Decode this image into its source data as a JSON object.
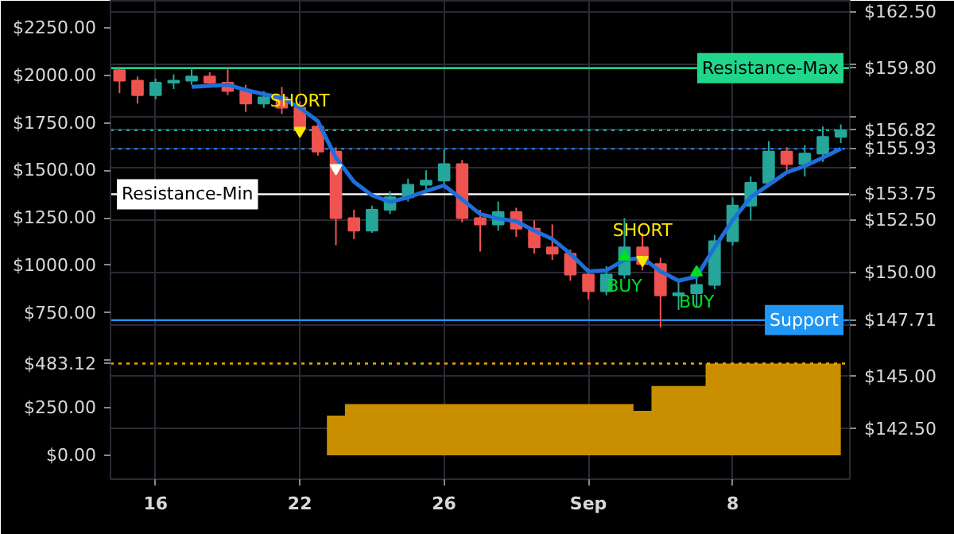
{
  "chart_data": {
    "type": "candlestick",
    "categories": [
      null,
      null,
      "16",
      null,
      null,
      null,
      null,
      null,
      null,
      null,
      "22",
      null,
      null,
      null,
      null,
      null,
      null,
      null,
      "26",
      null,
      null,
      null,
      null,
      null,
      null,
      null,
      "Sep",
      null,
      null,
      null,
      null,
      null,
      null,
      null,
      "8",
      null,
      null,
      null,
      null,
      null,
      null
    ],
    "ohlc": [
      [
        159.7,
        159.8,
        158.6,
        159.2
      ],
      [
        159.2,
        159.4,
        158.1,
        158.5
      ],
      [
        158.5,
        159.3,
        158.3,
        159.1
      ],
      [
        159.1,
        159.5,
        158.8,
        159.2
      ],
      [
        159.2,
        159.8,
        159.0,
        159.4
      ],
      [
        159.4,
        159.6,
        158.9,
        159.1
      ],
      [
        159.1,
        159.8,
        158.5,
        158.7
      ],
      [
        158.7,
        159.0,
        157.7,
        158.1
      ],
      [
        158.1,
        158.7,
        157.9,
        158.4
      ],
      [
        158.4,
        158.9,
        157.6,
        157.9
      ],
      [
        157.9,
        158.2,
        156.8,
        157.0
      ],
      [
        157.0,
        157.2,
        155.6,
        155.8
      ],
      [
        155.8,
        156.0,
        151.3,
        152.6
      ],
      [
        152.6,
        153.0,
        151.6,
        152.0
      ],
      [
        152.0,
        153.2,
        151.9,
        153.0
      ],
      [
        153.0,
        153.9,
        152.8,
        153.6
      ],
      [
        153.6,
        154.5,
        153.4,
        154.2
      ],
      [
        154.2,
        154.9,
        153.9,
        154.4
      ],
      [
        154.4,
        155.9,
        154.2,
        155.2
      ],
      [
        155.2,
        155.4,
        152.4,
        152.6
      ],
      [
        152.6,
        153.0,
        151.0,
        152.3
      ],
      [
        152.3,
        153.4,
        152.0,
        152.9
      ],
      [
        152.9,
        153.1,
        151.7,
        152.1
      ],
      [
        152.1,
        152.5,
        150.9,
        151.2
      ],
      [
        151.2,
        152.3,
        150.6,
        150.9
      ],
      [
        150.9,
        151.1,
        149.6,
        149.9
      ],
      [
        149.9,
        150.2,
        148.7,
        149.1
      ],
      [
        149.1,
        150.3,
        148.9,
        149.9
      ],
      [
        149.9,
        152.6,
        149.7,
        151.2
      ],
      [
        151.2,
        151.9,
        150.1,
        150.4
      ],
      [
        150.4,
        150.7,
        147.35,
        148.9
      ],
      [
        148.9,
        149.6,
        148.2,
        149.0
      ],
      [
        149.0,
        149.9,
        148.3,
        149.4
      ],
      [
        149.4,
        151.8,
        149.2,
        151.5
      ],
      [
        151.5,
        153.6,
        151.3,
        153.2
      ],
      [
        153.2,
        154.6,
        152.5,
        154.3
      ],
      [
        154.3,
        156.3,
        154.1,
        155.8
      ],
      [
        155.8,
        156.0,
        154.8,
        155.2
      ],
      [
        155.2,
        156.1,
        154.6,
        155.7
      ],
      [
        155.7,
        157.0,
        155.3,
        156.5
      ],
      [
        156.5,
        157.1,
        156.2,
        156.82
      ]
    ],
    "colors": [
      "#ef5350",
      "#ef5350",
      "#26a69a",
      "#26a69a",
      "#26a69a",
      "#ef5350",
      "#ef5350",
      "#ef5350",
      "#26a69a",
      "#ef5350",
      "#ef5350",
      "#ef5350",
      "#ef5350",
      "#ef5350",
      "#26a69a",
      "#26a69a",
      "#26a69a",
      "#26a69a",
      "#26a69a",
      "#ef5350",
      "#ef5350",
      "#26a69a",
      "#ef5350",
      "#ef5350",
      "#ef5350",
      "#ef5350",
      "#ef5350",
      "#26a69a",
      "#26a69a",
      "#ef5350",
      "#ef5350",
      "#26a69a",
      "#26a69a",
      "#26a69a",
      "#26a69a",
      "#26a69a",
      "#26a69a",
      "#ef5350",
      "#26a69a",
      "#26a69a",
      "#26a69a"
    ],
    "series": [
      {
        "type": "area",
        "axis": "y2",
        "color": "#c98f00",
        "values": [
          0,
          0,
          0,
          0,
          0,
          0,
          0,
          0,
          0,
          0,
          0,
          0,
          210,
          270,
          270,
          270,
          270,
          270,
          270,
          270,
          270,
          270,
          270,
          270,
          270,
          270,
          270,
          270,
          270,
          235,
          365,
          365,
          365,
          483.12,
          483.12,
          483.12,
          483.12,
          483.12,
          483.12,
          483.12,
          483.12
        ]
      },
      {
        "type": "line",
        "color": "#1e6fdb",
        "values": [
          null,
          null,
          null,
          null,
          158.9,
          158.95,
          159.0,
          158.75,
          158.55,
          158.38,
          157.9,
          157.25,
          155.5,
          154.35,
          153.7,
          153.38,
          153.6,
          153.9,
          154.17,
          153.5,
          152.8,
          152.58,
          152.45,
          152.0,
          151.6,
          150.9,
          150.05,
          150.1,
          150.6,
          150.7,
          150.05,
          149.6,
          149.8,
          151.2,
          152.5,
          153.6,
          154.2,
          154.8,
          155.1,
          155.5,
          155.93
        ]
      },
      {
        "type": "scatter",
        "name": "SHORT",
        "marker": "triangle",
        "color": "#ffe600",
        "values": [
          null,
          null,
          null,
          null,
          null,
          null,
          null,
          null,
          null,
          null,
          156.8,
          null,
          null,
          null,
          null,
          null,
          null,
          null,
          null,
          null,
          null,
          null,
          null,
          null,
          null,
          null,
          null,
          null,
          null,
          150.6,
          null,
          null,
          null,
          null,
          null,
          null,
          null,
          null,
          null,
          null,
          null
        ]
      },
      {
        "type": "scatter",
        "marker": "triangle",
        "color": "#ffffff",
        "values": [
          null,
          null,
          null,
          null,
          null,
          null,
          null,
          null,
          null,
          null,
          null,
          null,
          155.0,
          null,
          null,
          null,
          null,
          null,
          null,
          null,
          null,
          null,
          null,
          null,
          null,
          null,
          null,
          null,
          null,
          null,
          null,
          null,
          null,
          null,
          null,
          null,
          null,
          null,
          null,
          null,
          null
        ]
      },
      {
        "type": "scatter",
        "name": "BUY",
        "marker": "triangle",
        "color": "#00e020",
        "values": [
          null,
          null,
          null,
          null,
          null,
          null,
          null,
          null,
          null,
          null,
          null,
          null,
          null,
          null,
          null,
          null,
          null,
          null,
          null,
          null,
          null,
          null,
          null,
          null,
          null,
          null,
          null,
          null,
          150.76,
          null,
          null,
          null,
          150.0,
          null,
          null,
          null,
          null,
          null,
          null,
          null,
          null
        ]
      }
    ],
    "ref_lines": [
      {
        "axis": "y",
        "value": 159.8,
        "label": "Resistance-Max",
        "color": "#1fd68a",
        "line_style": "solid"
      },
      {
        "axis": "y",
        "value": 156.82,
        "label": null,
        "color": "#26a69a",
        "line_style": "dotted"
      },
      {
        "axis": "y",
        "value": 155.93,
        "label": null,
        "color": "#1e6fdb",
        "line_style": "dotted"
      },
      {
        "axis": "y",
        "value": 153.75,
        "label": "Resistance-Min",
        "color": "#ffffff",
        "line_style": "solid"
      },
      {
        "axis": "y",
        "value": 147.71,
        "label": "Support",
        "color": "#2196f3",
        "line_style": "solid"
      },
      {
        "axis": "y2",
        "value": 483.12,
        "label": null,
        "color": "#f0a800",
        "line_style": "dotted"
      }
    ],
    "ylim": [
      140.08,
      163.03
    ],
    "yticks": [
      {
        "value": 142.5,
        "label": "$142.50"
      },
      {
        "value": 145,
        "label": "$145.00"
      },
      {
        "value": 147.5,
        "label": null
      },
      {
        "value": 147.71,
        "label": "$147.71"
      },
      {
        "value": 150,
        "label": "$150.00"
      },
      {
        "value": 152.5,
        "label": "$152.50"
      },
      {
        "value": 153.75,
        "label": "$153.75"
      },
      {
        "value": 155,
        "label": null
      },
      {
        "value": 155.93,
        "label": "$155.93"
      },
      {
        "value": 156.82,
        "label": "$156.82"
      },
      {
        "value": 157.5,
        "label": null
      },
      {
        "value": 159.8,
        "label": "$159.80"
      },
      {
        "value": 160,
        "label": null
      },
      {
        "value": 162.5,
        "label": "$162.50"
      }
    ],
    "y2lim": [
      -125,
      2392
    ],
    "y2ticks": [
      {
        "value": 0,
        "label": "$0.00"
      },
      {
        "value": 250,
        "label": "$250.00"
      },
      {
        "value": 483.12,
        "label": "$483.12"
      },
      {
        "value": 500,
        "label": null
      },
      {
        "value": 750,
        "label": "$750.00"
      },
      {
        "value": 1000,
        "label": "$1000.00"
      },
      {
        "value": 1250,
        "label": "$1250.00"
      },
      {
        "value": 1500,
        "label": "$1500.00"
      },
      {
        "value": 1750,
        "label": "$1750.00"
      },
      {
        "value": 2000,
        "label": "$2000.00"
      },
      {
        "value": 2250,
        "label": "$2250.00"
      }
    ],
    "grid": true
  }
}
